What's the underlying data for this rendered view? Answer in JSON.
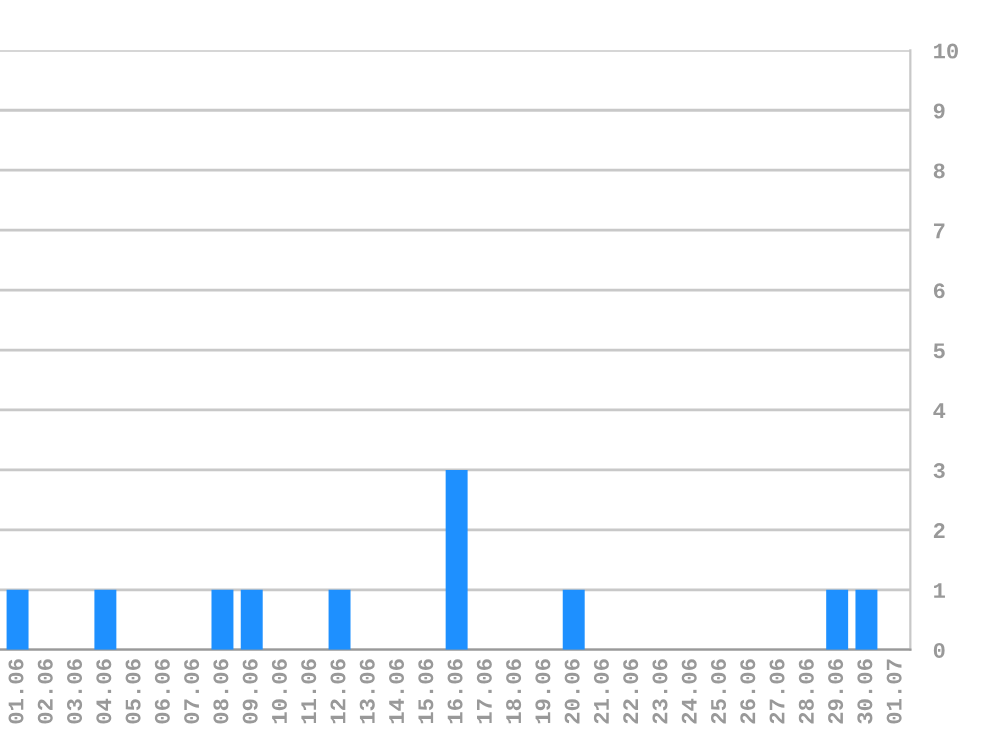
{
  "chart_data": {
    "type": "bar",
    "categories": [
      "01.06",
      "02.06",
      "03.06",
      "04.06",
      "05.06",
      "06.06",
      "07.06",
      "08.06",
      "09.06",
      "10.06",
      "11.06",
      "12.06",
      "13.06",
      "14.06",
      "15.06",
      "16.06",
      "17.06",
      "18.06",
      "19.06",
      "20.06",
      "21.06",
      "22.06",
      "23.06",
      "24.06",
      "25.06",
      "26.06",
      "27.06",
      "28.06",
      "29.06",
      "30.06",
      "01.07"
    ],
    "values": [
      1,
      0,
      0,
      1,
      0,
      0,
      0,
      1,
      1,
      0,
      0,
      1,
      0,
      0,
      0,
      3,
      0,
      0,
      0,
      1,
      0,
      0,
      0,
      0,
      0,
      0,
      0,
      0,
      1,
      1,
      0
    ],
    "color": "#1e90ff",
    "ylim": [
      0,
      10
    ],
    "yticks": [
      0,
      1,
      2,
      3,
      4,
      5,
      6,
      7,
      8,
      9,
      10
    ],
    "grid": "y"
  }
}
